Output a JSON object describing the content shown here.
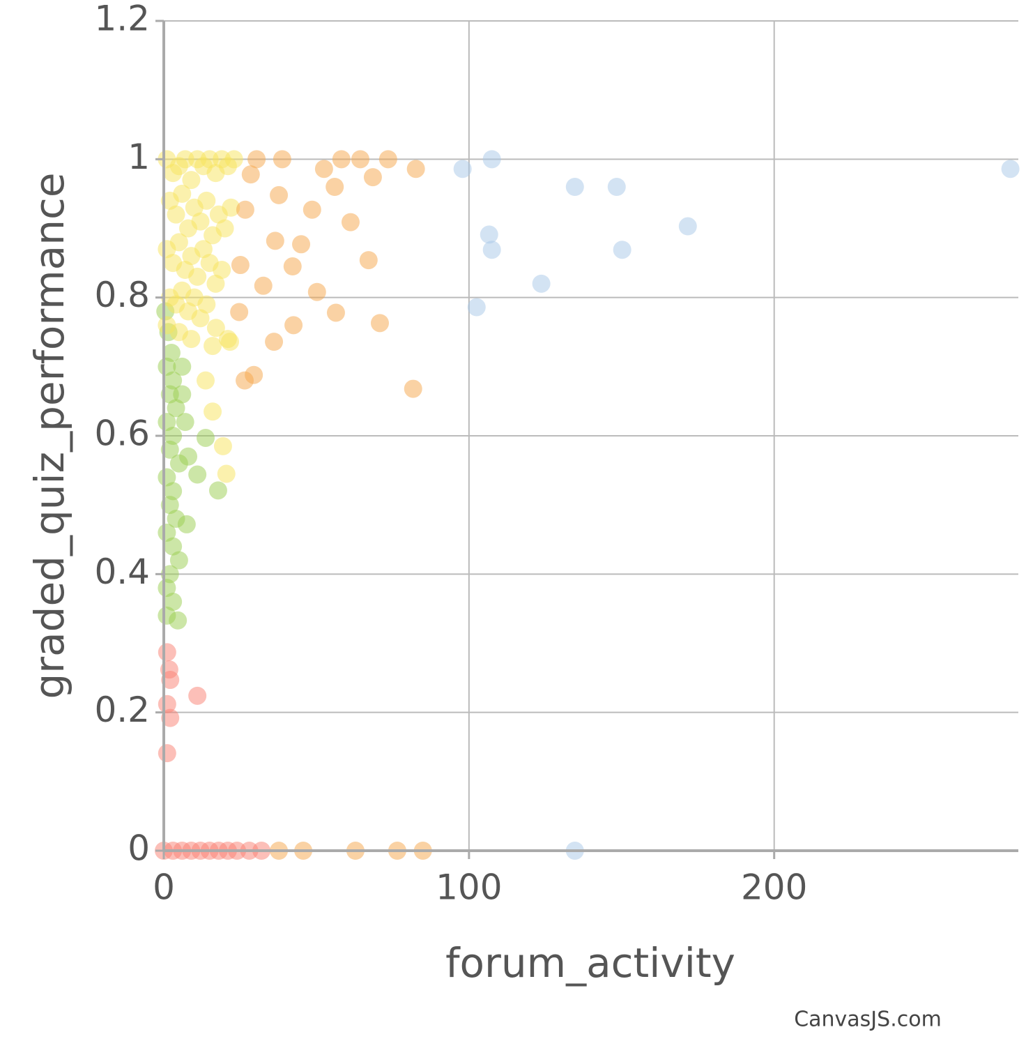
{
  "chart_data": {
    "type": "scatter",
    "x_label": "forum_activity",
    "y_label": "graded_quiz_performance",
    "credit": "CanvasJS.com",
    "xlim": [
      0,
      280
    ],
    "xticks": [
      0,
      100,
      200
    ],
    "ylim": [
      0,
      1.2
    ],
    "yticks": [
      0,
      0.2,
      0.4,
      0.6,
      0.8,
      1,
      1.2
    ],
    "grid": true,
    "series": [
      {
        "color": "#fa8072",
        "x": [
          1.1,
          1.8,
          2.1,
          11,
          1.1,
          2.1,
          1.1,
          0,
          3,
          6,
          9,
          12,
          15,
          18,
          21,
          24,
          28,
          32
        ],
        "values": [
          0.287,
          0.262,
          0.247,
          0.224,
          0.212,
          0.192,
          0.141,
          0,
          0,
          0,
          0,
          0,
          0,
          0,
          0,
          0,
          0,
          0
        ]
      },
      {
        "color": "#9acd50",
        "x": [
          0.5,
          1.5,
          2.5,
          1,
          3,
          2,
          4,
          1,
          3,
          2,
          5,
          1,
          3,
          2,
          4,
          1,
          3,
          5,
          2,
          1,
          3,
          1,
          6,
          7,
          8,
          6,
          13.7,
          11,
          17.8,
          7.5,
          4.6
        ],
        "values": [
          0.78,
          0.75,
          0.72,
          0.7,
          0.68,
          0.66,
          0.64,
          0.62,
          0.6,
          0.58,
          0.56,
          0.54,
          0.52,
          0.5,
          0.48,
          0.46,
          0.44,
          0.42,
          0.4,
          0.38,
          0.36,
          0.34,
          0.66,
          0.62,
          0.57,
          0.7,
          0.597,
          0.544,
          0.521,
          0.472,
          0.333
        ]
      },
      {
        "color": "#f8e45c",
        "x": [
          1,
          3,
          5,
          7,
          9,
          11,
          13,
          15,
          17,
          19,
          21,
          23,
          2,
          4,
          6,
          8,
          10,
          12,
          14,
          16,
          18,
          20,
          22,
          1,
          3,
          5,
          7,
          9,
          11,
          13,
          15,
          17,
          19,
          2,
          4,
          6,
          8,
          10,
          12,
          14,
          1,
          5,
          9,
          16,
          21,
          19.4,
          20.5,
          16,
          13.7,
          21.7,
          17.1
        ],
        "values": [
          1,
          0.98,
          0.99,
          1,
          0.97,
          1,
          0.99,
          1,
          0.98,
          1,
          0.99,
          1,
          0.94,
          0.92,
          0.95,
          0.9,
          0.93,
          0.91,
          0.94,
          0.89,
          0.92,
          0.9,
          0.93,
          0.87,
          0.85,
          0.88,
          0.84,
          0.86,
          0.83,
          0.87,
          0.85,
          0.82,
          0.84,
          0.8,
          0.79,
          0.81,
          0.78,
          0.8,
          0.77,
          0.79,
          0.76,
          0.75,
          0.74,
          0.73,
          0.74,
          0.585,
          0.545,
          0.635,
          0.68,
          0.736,
          0.756
        ]
      },
      {
        "color": "#f5a54a",
        "x": [
          82.6,
          73.5,
          64.4,
          58.2,
          52.5,
          56,
          68.5,
          61.2,
          67.1,
          70.8,
          56.4,
          50.2,
          42.5,
          36.1,
          81.7,
          26.5,
          29.5,
          38.8,
          30.4,
          37.7,
          45,
          36.5,
          42.2,
          32.6,
          24.7,
          25.1,
          48.6,
          26.7,
          28.5,
          37.7,
          45.7,
          62.8,
          76.5,
          84.9
        ],
        "values": [
          0.986,
          1,
          1,
          1,
          0.986,
          0.96,
          0.974,
          0.909,
          0.854,
          0.763,
          0.778,
          0.808,
          0.76,
          0.736,
          0.668,
          0.68,
          0.688,
          1,
          1,
          0.948,
          0.877,
          0.882,
          0.845,
          0.817,
          0.779,
          0.847,
          0.927,
          0.927,
          0.978,
          0,
          0,
          0,
          0,
          0
        ]
      },
      {
        "color": "#a8c8e8",
        "x": [
          97.9,
          107.5,
          106.6,
          107.5,
          102.5,
          123.7,
          134.7,
          148.4,
          150.2,
          171.7,
          277.4,
          134.7
        ],
        "values": [
          0.986,
          1,
          0.891,
          0.869,
          0.786,
          0.82,
          0.96,
          0.96,
          0.869,
          0.903,
          0.986,
          0
        ]
      }
    ]
  }
}
